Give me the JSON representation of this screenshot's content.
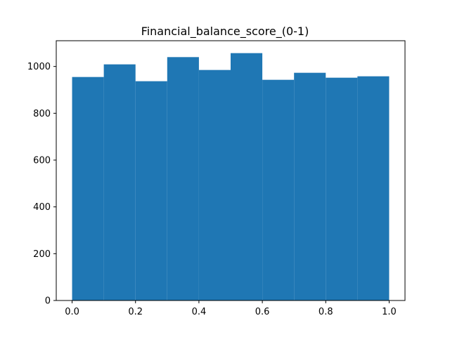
{
  "chart_data": {
    "type": "bar",
    "title": "Financial_balance_score_(0-1)",
    "xlabel": "",
    "ylabel": "",
    "bin_edges": [
      0.0,
      0.1,
      0.2,
      0.3,
      0.4,
      0.5,
      0.6,
      0.7,
      0.8,
      0.9,
      1.0
    ],
    "values": [
      955,
      1009,
      937,
      1040,
      985,
      1057,
      943,
      973,
      952,
      958
    ],
    "xlim": [
      -0.05,
      1.05
    ],
    "ylim": [
      0,
      1110
    ],
    "xticks": [
      {
        "value": 0.0,
        "label": "0.0"
      },
      {
        "value": 0.2,
        "label": "0.2"
      },
      {
        "value": 0.4,
        "label": "0.4"
      },
      {
        "value": 0.6,
        "label": "0.6"
      },
      {
        "value": 0.8,
        "label": "0.8"
      },
      {
        "value": 1.0,
        "label": "1.0"
      }
    ],
    "yticks": [
      {
        "value": 0,
        "label": "0"
      },
      {
        "value": 200,
        "label": "200"
      },
      {
        "value": 400,
        "label": "400"
      },
      {
        "value": 600,
        "label": "600"
      },
      {
        "value": 800,
        "label": "800"
      },
      {
        "value": 1000,
        "label": "1000"
      }
    ],
    "bar_color": "#1f77b4",
    "grid": false,
    "legend": "none"
  }
}
